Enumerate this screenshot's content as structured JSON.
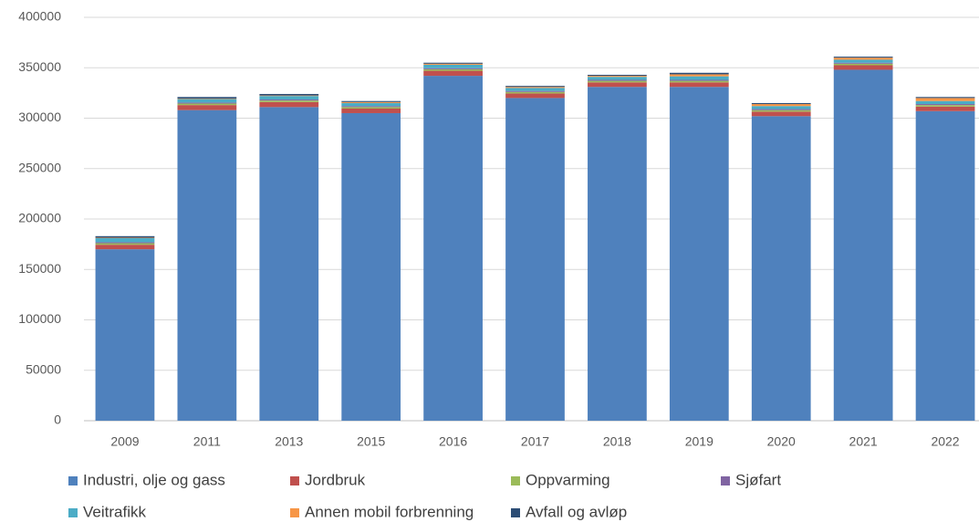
{
  "chart_data": {
    "type": "stacked_bar",
    "categories": [
      "2009",
      "2011",
      "2013",
      "2015",
      "2016",
      "2017",
      "2018",
      "2019",
      "2020",
      "2021",
      "2022"
    ],
    "series": [
      {
        "name": "Industri, olje og gass",
        "color": "#4f81bd",
        "values": [
          170000,
          308000,
          311000,
          305000,
          342000,
          320000,
          331000,
          331000,
          302000,
          348000,
          307000
        ]
      },
      {
        "name": "Jordbruk",
        "color": "#c0504d",
        "values": [
          4500,
          5000,
          5000,
          4500,
          5000,
          4500,
          4500,
          4500,
          4500,
          4500,
          4500
        ]
      },
      {
        "name": "Oppvarming",
        "color": "#9bbb59",
        "values": [
          1500,
          1500,
          1500,
          1500,
          1500,
          1500,
          1500,
          1500,
          1500,
          1500,
          1500
        ]
      },
      {
        "name": "Sjøfart",
        "color": "#8064a2",
        "values": [
          1000,
          1000,
          1000,
          1000,
          1000,
          1000,
          1000,
          1000,
          1000,
          1000,
          1000
        ]
      },
      {
        "name": "Veitrafikk",
        "color": "#4bacc6",
        "values": [
          4000,
          3500,
          3500,
          3000,
          3500,
          3000,
          3000,
          3500,
          3000,
          3000,
          3000
        ]
      },
      {
        "name": "Annen mobil forbrenning",
        "color": "#f79646",
        "values": [
          500,
          500,
          500,
          1000,
          1000,
          1000,
          1000,
          2000,
          2000,
          2000,
          3000
        ]
      },
      {
        "name": "Avfall og avløp",
        "color": "#2c4d75",
        "values": [
          1500,
          1500,
          1500,
          1000,
          1000,
          1000,
          1000,
          1500,
          1000,
          1000,
          1000
        ]
      }
    ],
    "ylim": [
      0,
      400000
    ],
    "yticks": [
      0,
      50000,
      100000,
      150000,
      200000,
      250000,
      300000,
      350000,
      400000
    ],
    "grid": true,
    "legend": "bottom"
  }
}
